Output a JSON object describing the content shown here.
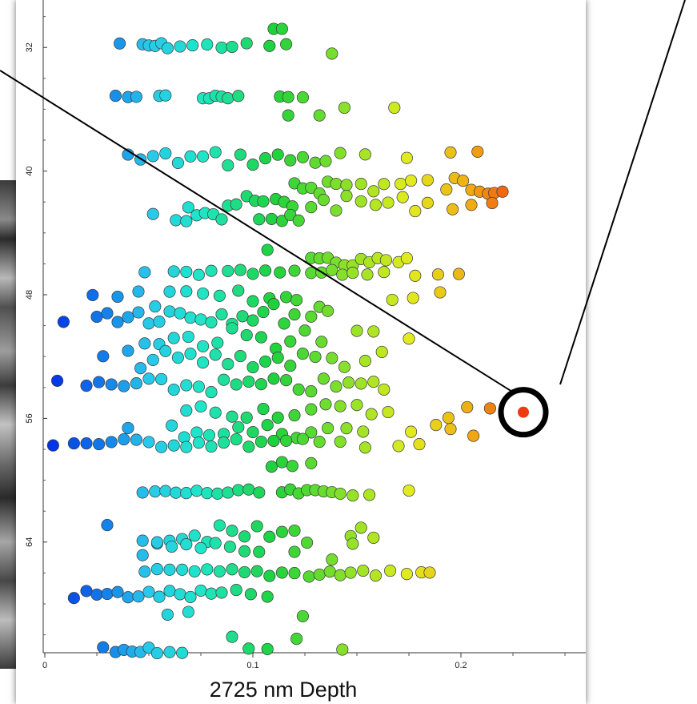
{
  "chart_data": {
    "type": "scatter",
    "title": "",
    "xlabel": "2725 nm Depth",
    "ylabel": "",
    "xlim": [
      0,
      0.25
    ],
    "ylim": [
      29.4,
      71.2
    ],
    "y_inverted": true,
    "x_ticks": [
      0,
      0.1,
      0.2
    ],
    "x_tick_labels": [
      "0",
      "0.1",
      "0.2"
    ],
    "y_ticks": [
      32,
      40,
      48,
      56,
      64
    ],
    "y_tick_labels": [
      "32",
      "40",
      "48",
      "56",
      "64"
    ],
    "grid": false,
    "legend": "none",
    "colormap": "depth: blue to cyan to green to yellow to orange to red",
    "colors": {
      "marker_edge": "#3a3a3a",
      "highlight_ring": "#000000",
      "highlight_point": "#ee3a10"
    },
    "highlight": {
      "x": 0.23,
      "y": 55.6
    },
    "rows": [
      {
        "y": 30.8,
        "x": [
          0.11,
          0.114
        ],
        "spread": 0
      },
      {
        "y": 31.9,
        "x": [
          0.036,
          0.047,
          0.05,
          0.053,
          0.056,
          0.059,
          0.065,
          0.071,
          0.078,
          0.085,
          0.09,
          0.097,
          0.108,
          0.116
        ],
        "spread": 0.2
      },
      {
        "y": 32.4,
        "x": [
          0.138
        ],
        "spread": 0
      },
      {
        "y": 35.2,
        "x": [
          0.034,
          0.04,
          0.044,
          0.055,
          0.058,
          0.076,
          0.079,
          0.082,
          0.085,
          0.088,
          0.093,
          0.113,
          0.117,
          0.124
        ],
        "spread": 0.1
      },
      {
        "y": 35.9,
        "x": [
          0.144,
          0.168
        ],
        "spread": 0
      },
      {
        "y": 36.4,
        "x": [
          0.117,
          0.132
        ],
        "spread": 0
      },
      {
        "y": 39.2,
        "x": [
          0.04,
          0.046,
          0.052,
          0.058,
          0.064,
          0.07,
          0.076,
          0.082,
          0.088,
          0.094,
          0.1,
          0.106,
          0.112,
          0.118,
          0.124,
          0.13,
          0.135,
          0.142,
          0.154,
          0.174,
          0.195,
          0.208
        ],
        "spread": 0.5
      },
      {
        "y": 40.9,
        "x": [
          0.12,
          0.124,
          0.128,
          0.132,
          0.136,
          0.14,
          0.145,
          0.152,
          0.158,
          0.163,
          0.171,
          0.176,
          0.184,
          0.193,
          0.197,
          0.201,
          0.205,
          0.209,
          0.213,
          0.216,
          0.22
        ],
        "spread": 0.6
      },
      {
        "y": 42.1,
        "x": [
          0.069,
          0.088,
          0.092,
          0.097,
          0.101,
          0.105,
          0.111,
          0.115,
          0.119,
          0.128,
          0.134,
          0.14,
          0.145,
          0.152,
          0.159,
          0.165,
          0.172,
          0.178,
          0.184,
          0.196,
          0.205,
          0.215
        ],
        "spread": 0.5
      },
      {
        "y": 43.0,
        "x": [
          0.052,
          0.063,
          0.068,
          0.073,
          0.077,
          0.081,
          0.085,
          0.103,
          0.109,
          0.114,
          0.118,
          0.122
        ],
        "spread": 0.3
      },
      {
        "y": 45.1,
        "x": [
          0.107
        ],
        "spread": 0
      },
      {
        "y": 45.9,
        "x": [
          0.128,
          0.132,
          0.136,
          0.14,
          0.144,
          0.148,
          0.152,
          0.156,
          0.16,
          0.164,
          0.17,
          0.174
        ],
        "spread": 0.3
      },
      {
        "y": 46.6,
        "x": [
          0.048,
          0.062,
          0.068,
          0.074,
          0.08,
          0.088,
          0.094,
          0.1,
          0.106,
          0.113,
          0.12,
          0.128,
          0.133,
          0.138,
          0.143,
          0.148,
          0.155,
          0.163,
          0.178,
          0.189,
          0.199
        ],
        "spread": 0.2
      },
      {
        "y": 48.3,
        "x": [
          0.023,
          0.035,
          0.045,
          0.053,
          0.06,
          0.068,
          0.076,
          0.084,
          0.093,
          0.1,
          0.108,
          0.116,
          0.121,
          0.132,
          0.167,
          0.177,
          0.19
        ],
        "spread": 0.6
      },
      {
        "y": 49.2,
        "x": [
          0.009,
          0.025,
          0.03,
          0.035,
          0.04,
          0.045,
          0.05,
          0.055,
          0.06,
          0.065,
          0.07,
          0.075,
          0.08,
          0.085,
          0.09,
          0.095,
          0.1,
          0.105,
          0.11,
          0.115,
          0.12,
          0.128,
          0.136
        ],
        "spread": 0.7
      },
      {
        "y": 50.8,
        "x": [
          0.048,
          0.055,
          0.062,
          0.069,
          0.076,
          0.083,
          0.09,
          0.097,
          0.104,
          0.111,
          0.118,
          0.125,
          0.133,
          0.15,
          0.158,
          0.175
        ],
        "spread": 0.7
      },
      {
        "y": 52.2,
        "x": [
          0.028,
          0.04,
          0.046,
          0.052,
          0.058,
          0.064,
          0.07,
          0.076,
          0.082,
          0.088,
          0.094,
          0.1,
          0.106,
          0.112,
          0.118,
          0.124,
          0.13,
          0.138,
          0.144,
          0.154,
          0.162
        ],
        "spread": 0.6
      },
      {
        "y": 53.9,
        "x": [
          0.006,
          0.02,
          0.026,
          0.032,
          0.038,
          0.044,
          0.05,
          0.056,
          0.062,
          0.068,
          0.074,
          0.08,
          0.086,
          0.092,
          0.098,
          0.104,
          0.11,
          0.116,
          0.122,
          0.128,
          0.134,
          0.14,
          0.146,
          0.152,
          0.158,
          0.163
        ],
        "spread": 0.5
      },
      {
        "y": 55.5,
        "x": [
          0.068,
          0.075,
          0.082,
          0.09,
          0.097,
          0.105,
          0.112,
          0.12,
          0.128,
          0.135,
          0.142,
          0.15,
          0.157,
          0.165,
          0.194,
          0.203,
          0.214
        ],
        "spread": 0.5
      },
      {
        "y": 56.8,
        "x": [
          0.04,
          0.061,
          0.067,
          0.073,
          0.079,
          0.086,
          0.093,
          0.1,
          0.107,
          0.114,
          0.121,
          0.128,
          0.136,
          0.145,
          0.153,
          0.176,
          0.188,
          0.195,
          0.206
        ],
        "spread": 0.5
      },
      {
        "y": 57.6,
        "x": [
          0.004,
          0.014,
          0.02,
          0.026,
          0.032,
          0.038,
          0.044,
          0.05,
          0.056,
          0.062,
          0.068,
          0.074,
          0.08,
          0.086,
          0.092,
          0.098,
          0.104,
          0.11,
          0.116,
          0.124,
          0.132,
          0.142,
          0.154,
          0.17,
          0.18
        ],
        "spread": 0.3
      },
      {
        "y": 59.1,
        "x": [
          0.109,
          0.114,
          0.119,
          0.128
        ],
        "spread": 0.3
      },
      {
        "y": 60.8,
        "x": [
          0.047,
          0.053,
          0.058,
          0.063,
          0.068,
          0.073,
          0.078,
          0.083,
          0.088,
          0.093,
          0.098,
          0.103,
          0.114,
          0.118,
          0.122,
          0.126,
          0.13,
          0.134,
          0.138,
          0.142,
          0.148,
          0.156,
          0.175
        ],
        "spread": 0.2
      },
      {
        "y": 63.5,
        "x": [
          0.03,
          0.047,
          0.054,
          0.06,
          0.066,
          0.072,
          0.078,
          0.084,
          0.09,
          0.096,
          0.102,
          0.108,
          0.114,
          0.12,
          0.126,
          0.147,
          0.152,
          0.158
        ],
        "spread": 0.6
      },
      {
        "y": 64.6,
        "x": [
          0.047,
          0.054,
          0.061,
          0.068,
          0.075,
          0.082,
          0.089,
          0.096,
          0.103,
          0.12,
          0.138,
          0.148
        ],
        "spread": 0.6
      },
      {
        "y": 66.0,
        "x": [
          0.048,
          0.054,
          0.06,
          0.066,
          0.072,
          0.078,
          0.084,
          0.09,
          0.096,
          0.102,
          0.108,
          0.114,
          0.12,
          0.127,
          0.132,
          0.137,
          0.142,
          0.147,
          0.153,
          0.159,
          0.166,
          0.174,
          0.181,
          0.185
        ],
        "spread": 0.3
      },
      {
        "y": 67.4,
        "x": [
          0.014,
          0.02,
          0.025,
          0.03,
          0.035,
          0.04,
          0.045,
          0.05,
          0.055,
          0.06,
          0.065,
          0.07,
          0.075,
          0.08,
          0.085,
          0.092,
          0.099,
          0.107
        ],
        "spread": 0.3
      },
      {
        "y": 68.8,
        "x": [
          0.059,
          0.069,
          0.124
        ],
        "spread": 0.3
      },
      {
        "y": 70.2,
        "x": [
          0.09,
          0.121
        ],
        "spread": 0.6
      },
      {
        "y": 71.0,
        "x": [
          0.028,
          0.034,
          0.038,
          0.042,
          0.046,
          0.05,
          0.054,
          0.06,
          0.066,
          0.098,
          0.107,
          0.143
        ],
        "spread": 0.2
      }
    ]
  }
}
